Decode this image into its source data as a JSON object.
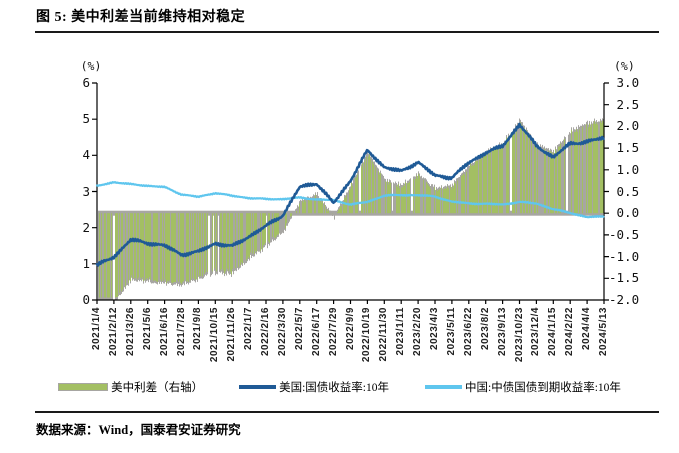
{
  "page": {
    "title": "图 5:  美中利差当前维持相对稳定",
    "source_note": "数据来源：Wind，国泰君安证券研究"
  },
  "chart_data": {
    "type": "bar+line",
    "title": "美中利差当前维持相对稳定",
    "grid": false,
    "legend_position": "bottom",
    "x_labels": [
      "2021/1/4",
      "2021/2/12",
      "2021/3/26",
      "2021/5/6",
      "2021/6/16",
      "2021/7/28",
      "2021/9/8",
      "2021/10/15",
      "2021/11/26",
      "2022/1/7",
      "2022/2/16",
      "2022/3/30",
      "2022/5/7",
      "2022/6/17",
      "2022/7/29",
      "2022/9/9",
      "2022/10/19",
      "2022/11/30",
      "2023/1/11",
      "2023/2/20",
      "2023/4/3",
      "2023/5/11",
      "2023/6/22",
      "2023/8/2",
      "2023/9/13",
      "2023/10/23",
      "2023/12/4",
      "2024/1/15",
      "2024/2/22",
      "2024/4/4",
      "2024/5/13"
    ],
    "left_axis": {
      "unit_label": "(%)",
      "min": 0,
      "max": 6,
      "ticks": [
        "6",
        "5",
        "4",
        "3",
        "2",
        "1",
        "0"
      ],
      "tick_values": [
        6,
        5,
        4,
        3,
        2,
        1,
        0
      ]
    },
    "right_axis": {
      "unit_label": "(%)",
      "min": -2.0,
      "max": 3.0,
      "ticks": [
        "3.0",
        "2.5",
        "2.0",
        "1.5",
        "1.0",
        "0.5",
        "0.0",
        "-0.5",
        "-1.0",
        "-1.5",
        "-2.0"
      ],
      "tick_values": [
        3.0,
        2.5,
        2.0,
        1.5,
        1.0,
        0.5,
        0.0,
        -0.5,
        -1.0,
        -1.5,
        -2.0
      ]
    },
    "series": [
      {
        "name": "美中利差（右轴）",
        "type": "bar",
        "axis": "right",
        "fill_color": "#a3bf63",
        "edge_color": "#a7a6a2",
        "values": [
          -2.2,
          -2.06,
          -1.54,
          -1.58,
          -1.62,
          -1.66,
          -1.52,
          -1.39,
          -1.4,
          -1.06,
          -0.75,
          -0.44,
          0.29,
          0.45,
          -0.09,
          0.67,
          1.42,
          0.79,
          0.65,
          0.92,
          0.57,
          0.67,
          1.12,
          1.42,
          1.61,
          2.15,
          1.59,
          1.44,
          1.91,
          2.09,
          2.17
        ]
      },
      {
        "name": "美国:国债收益率:10年",
        "type": "line",
        "axis": "left",
        "color": "#1f5a96",
        "values": [
          0.95,
          1.2,
          1.66,
          1.58,
          1.5,
          1.26,
          1.33,
          1.57,
          1.48,
          1.76,
          2.04,
          2.35,
          3.12,
          3.23,
          2.67,
          3.31,
          4.13,
          3.68,
          3.55,
          3.82,
          3.43,
          3.39,
          3.79,
          4.08,
          4.25,
          4.86,
          4.26,
          3.95,
          4.32,
          4.38,
          4.48
        ]
      },
      {
        "name": "中国:中债国债到期收益率:10年",
        "type": "line",
        "axis": "left",
        "color": "#5fc6ee",
        "values": [
          3.15,
          3.26,
          3.2,
          3.16,
          3.12,
          2.92,
          2.85,
          2.96,
          2.88,
          2.82,
          2.79,
          2.79,
          2.83,
          2.78,
          2.76,
          2.64,
          2.71,
          2.89,
          2.9,
          2.9,
          2.86,
          2.72,
          2.67,
          2.66,
          2.64,
          2.71,
          2.67,
          2.51,
          2.41,
          2.29,
          2.31
        ]
      }
    ]
  }
}
